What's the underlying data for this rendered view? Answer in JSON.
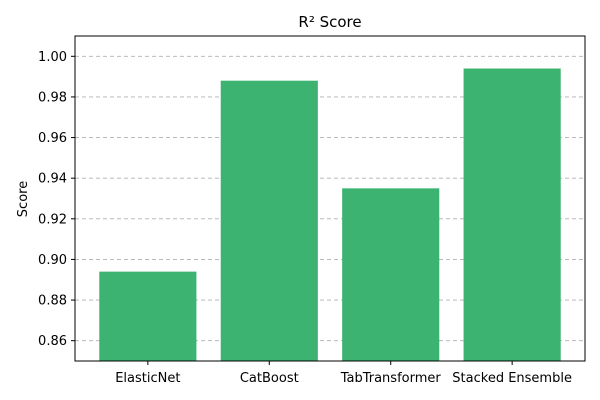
{
  "chart_data": {
    "type": "bar",
    "title": "R² Score",
    "xlabel": "",
    "ylabel": "Score",
    "categories": [
      "ElasticNet",
      "CatBoost",
      "TabTransformer",
      "Stacked Ensemble"
    ],
    "values": [
      0.894,
      0.988,
      0.935,
      0.994
    ],
    "ylim": [
      0.85,
      1.01
    ],
    "yticks": [
      0.86,
      0.88,
      0.9,
      0.92,
      0.94,
      0.96,
      0.98,
      1.0
    ],
    "ytick_labels": [
      "0.86",
      "0.88",
      "0.90",
      "0.92",
      "0.94",
      "0.96",
      "0.98",
      "1.00"
    ],
    "grid": "y",
    "bar_color": "#3cb371"
  }
}
